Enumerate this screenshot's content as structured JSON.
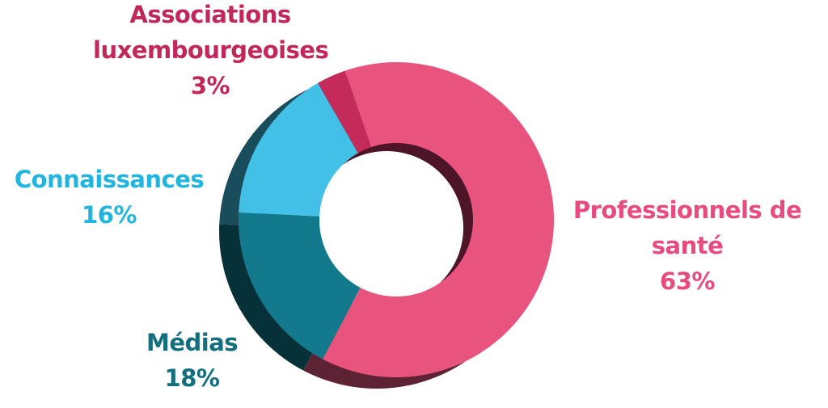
{
  "chart_data": {
    "type": "donut",
    "categories": [
      "Professionnels de santé",
      "Médias",
      "Connaissances",
      "Associations luxembourgeoises"
    ],
    "values": [
      63,
      18,
      16,
      3
    ],
    "value_labels": [
      "63%",
      "18%",
      "16%",
      "3%"
    ],
    "colors": [
      "#e9547f",
      "#127a8c",
      "#42c0e6",
      "#c42b5b"
    ]
  }
}
